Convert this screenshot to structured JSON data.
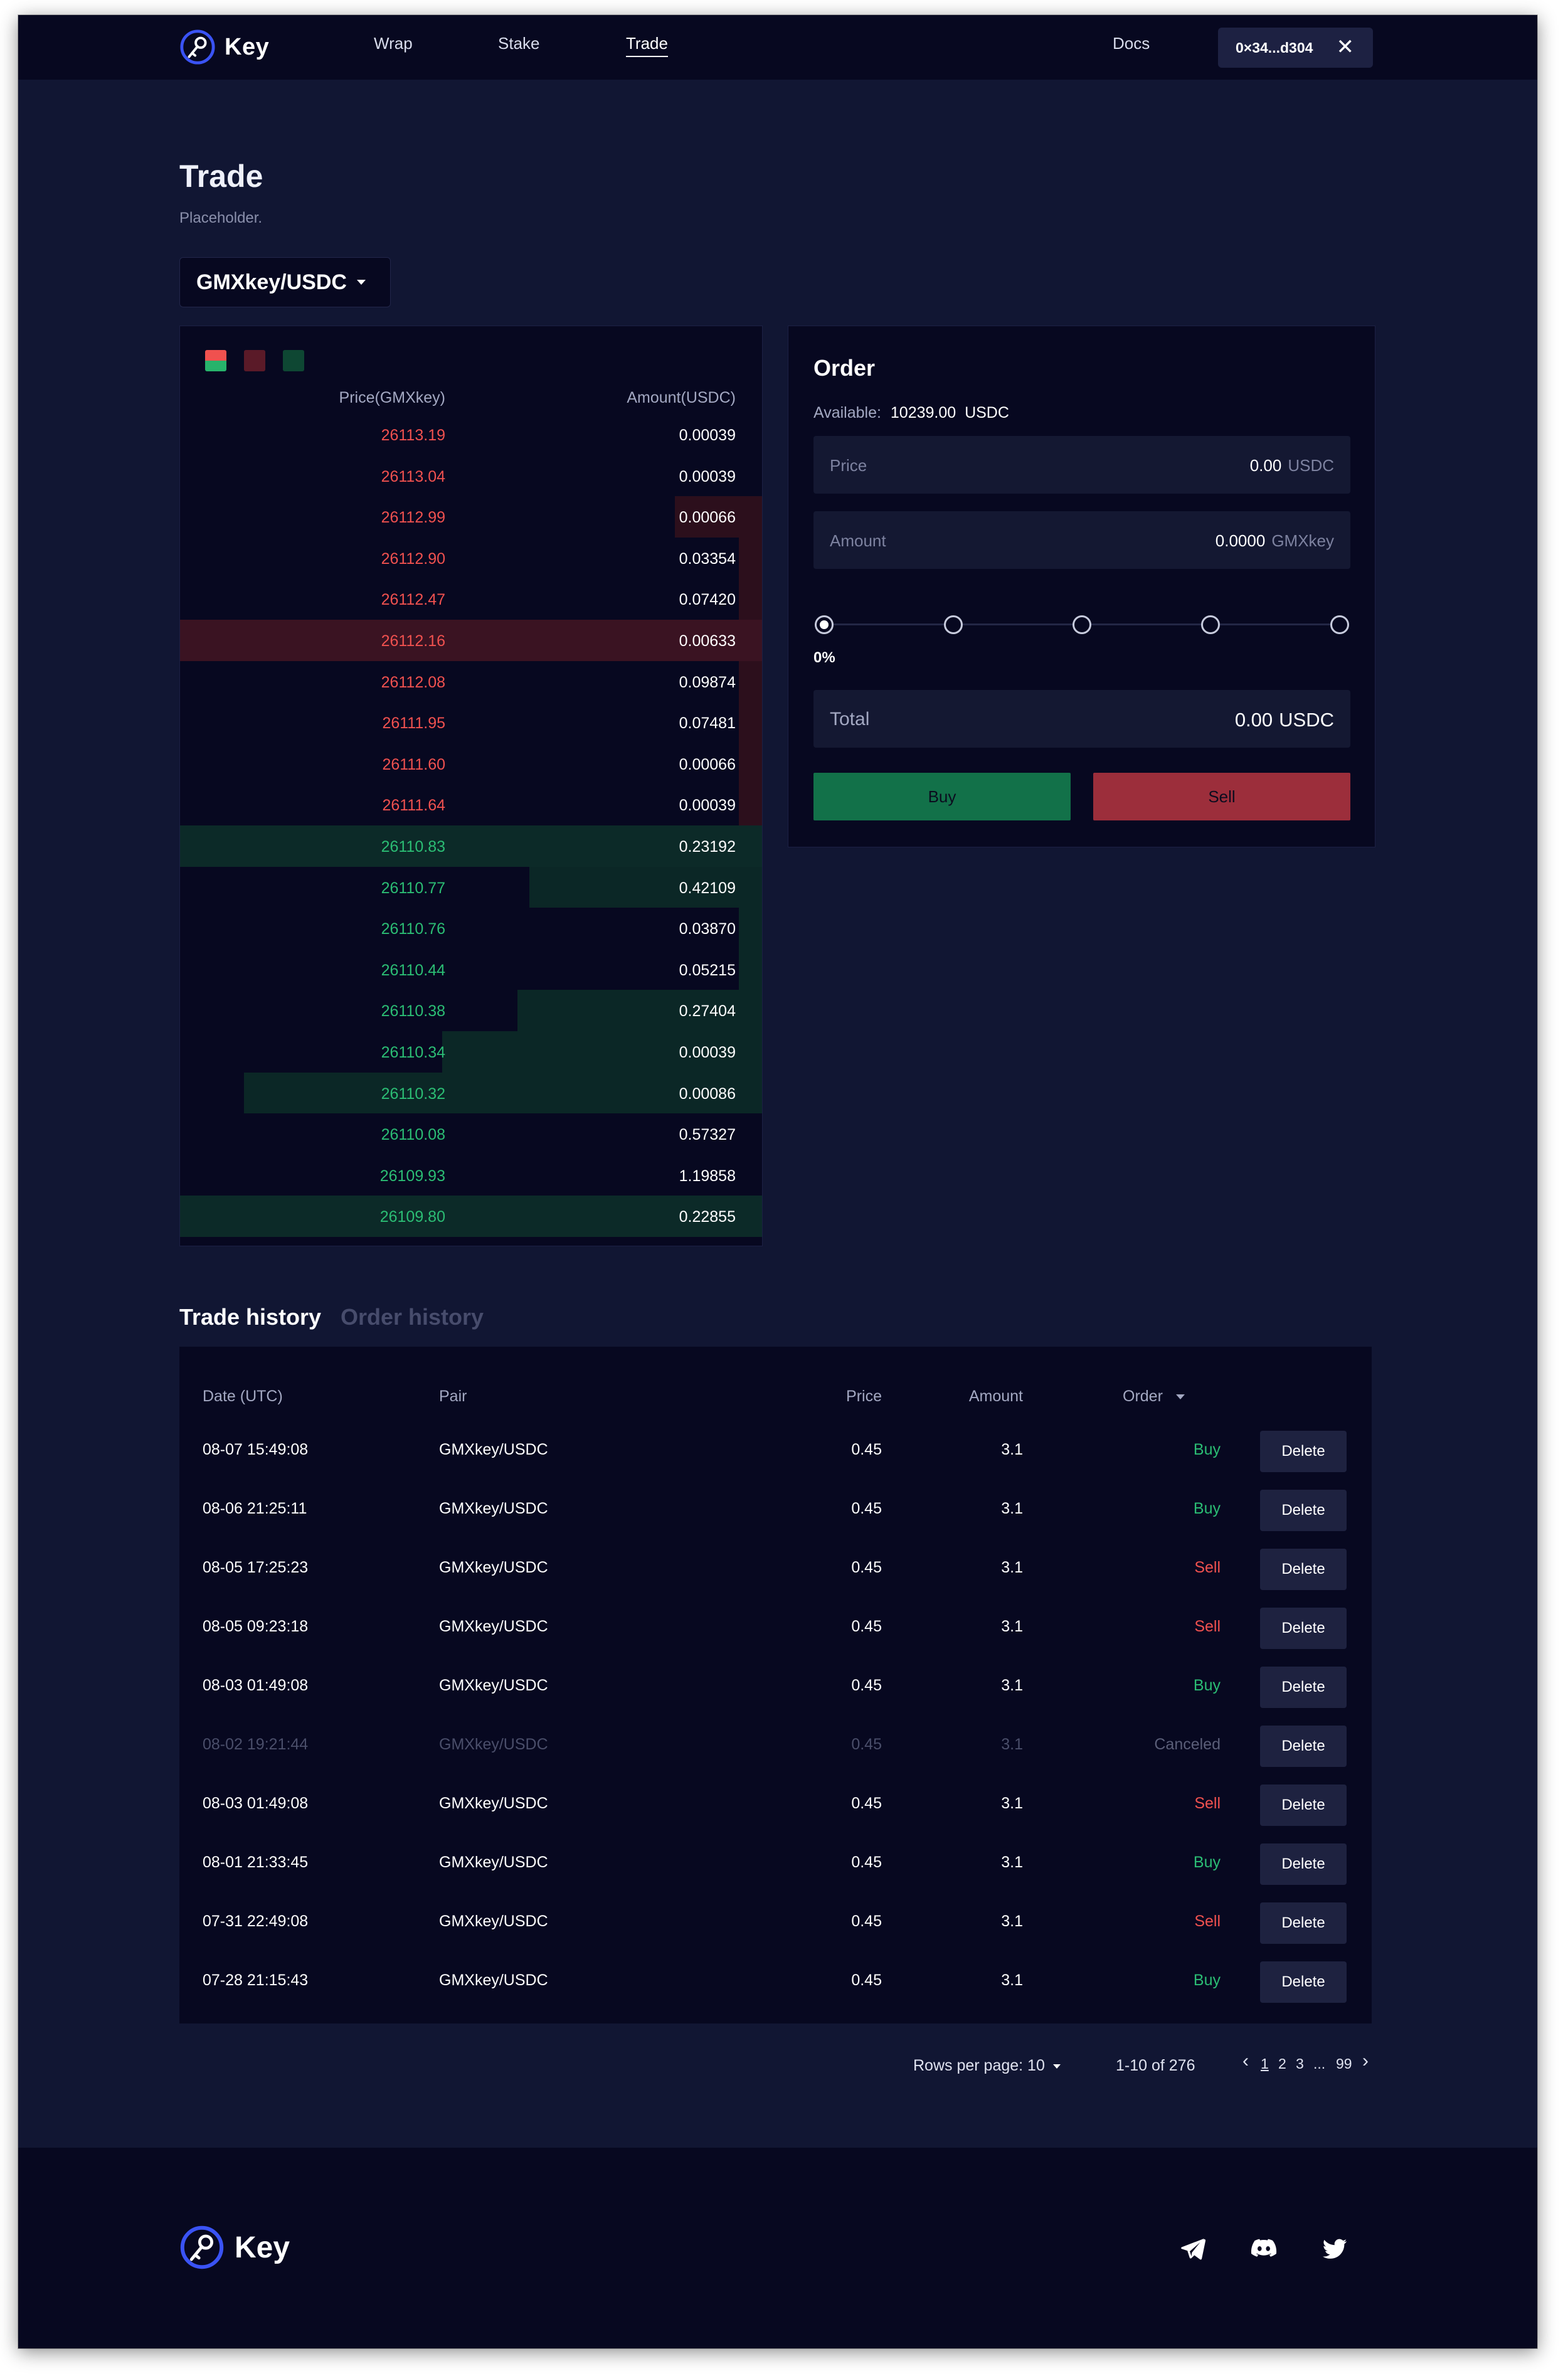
{
  "header": {
    "logo_text": "Key",
    "nav": [
      "Wrap",
      "Stake",
      "Trade"
    ],
    "active_nav": "Trade",
    "docs": "Docs",
    "wallet": "0×34...d304",
    "close_glyph": "✕"
  },
  "page": {
    "title": "Trade",
    "subtitle": "Placeholder.",
    "pair": "GMXkey/USDC"
  },
  "orderbook": {
    "price_header": "Price(GMXkey)",
    "amount_header": "Amount(USDC)",
    "asks": [
      {
        "price": "26113.19",
        "amount": "0.00039",
        "depth": 0
      },
      {
        "price": "26113.04",
        "amount": "0.00039",
        "depth": 0
      },
      {
        "price": "26112.99",
        "amount": "0.00066",
        "depth": 0.15
      },
      {
        "price": "26112.90",
        "amount": "0.03354",
        "depth": 0.04
      },
      {
        "price": "26112.47",
        "amount": "0.07420",
        "depth": 0.04
      },
      {
        "price": "26112.16",
        "amount": "0.00633",
        "depth": 1
      },
      {
        "price": "26112.08",
        "amount": "0.09874",
        "depth": 0.04
      },
      {
        "price": "26111.95",
        "amount": "0.07481",
        "depth": 0.04
      },
      {
        "price": "26111.60",
        "amount": "0.00066",
        "depth": 0.04
      },
      {
        "price": "26111.64",
        "amount": "0.00039",
        "depth": 0.04
      }
    ],
    "bids": [
      {
        "price": "26110.83",
        "amount": "0.23192",
        "depth": 1
      },
      {
        "price": "26110.77",
        "amount": "0.42109",
        "depth": 0.4
      },
      {
        "price": "26110.76",
        "amount": "0.03870",
        "depth": 0.04
      },
      {
        "price": "26110.44",
        "amount": "0.05215",
        "depth": 0.04
      },
      {
        "price": "26110.38",
        "amount": "0.27404",
        "depth": 0.42
      },
      {
        "price": "26110.34",
        "amount": "0.00039",
        "depth": 0.55
      },
      {
        "price": "26110.32",
        "amount": "0.00086",
        "depth": 0.89
      },
      {
        "price": "26110.08",
        "amount": "0.57327",
        "depth": 0
      },
      {
        "price": "26109.93",
        "amount": "1.19858",
        "depth": 0
      },
      {
        "price": "26109.80",
        "amount": "0.22855",
        "depth": 1
      }
    ],
    "colors": {
      "ask": "#f0514f",
      "bid": "#2bbd74"
    }
  },
  "order": {
    "title": "Order",
    "available_label": "Available:",
    "available_value": "10239.00  USDC",
    "price_label": "Price",
    "price_value": "0.00",
    "price_unit": "USDC",
    "amount_label": "Amount",
    "amount_value": "0.0000",
    "amount_unit": "GMXkey",
    "slider_percent": "0%",
    "slider_level": 0,
    "total_label": "Total",
    "total_value": "0.00",
    "total_unit": "USDC",
    "buy_label": "Buy",
    "sell_label": "Sell"
  },
  "history": {
    "tabs": [
      "Trade history",
      "Order history"
    ],
    "active_tab": "Trade history",
    "columns": [
      "Date (UTC)",
      "Pair",
      "Price",
      "Amount",
      "Order"
    ],
    "delete_label": "Delete",
    "rows": [
      {
        "date": "08-07 15:49:08",
        "pair": "GMXkey/USDC",
        "price": "0.45",
        "amount": "3.1",
        "order": "Buy"
      },
      {
        "date": "08-06 21:25:11",
        "pair": "GMXkey/USDC",
        "price": "0.45",
        "amount": "3.1",
        "order": "Buy"
      },
      {
        "date": "08-05 17:25:23",
        "pair": "GMXkey/USDC",
        "price": "0.45",
        "amount": "3.1",
        "order": "Sell"
      },
      {
        "date": "08-05 09:23:18",
        "pair": "GMXkey/USDC",
        "price": "0.45",
        "amount": "3.1",
        "order": "Sell"
      },
      {
        "date": "08-03 01:49:08",
        "pair": "GMXkey/USDC",
        "price": "0.45",
        "amount": "3.1",
        "order": "Buy"
      },
      {
        "date": "08-02 19:21:44",
        "pair": "GMXkey/USDC",
        "price": "0.45",
        "amount": "3.1",
        "order": "Canceled"
      },
      {
        "date": "08-03 01:49:08",
        "pair": "GMXkey/USDC",
        "price": "0.45",
        "amount": "3.1",
        "order": "Sell"
      },
      {
        "date": "08-01 21:33:45",
        "pair": "GMXkey/USDC",
        "price": "0.45",
        "amount": "3.1",
        "order": "Buy"
      },
      {
        "date": "07-31 22:49:08",
        "pair": "GMXkey/USDC",
        "price": "0.45",
        "amount": "3.1",
        "order": "Sell"
      },
      {
        "date": "07-28 21:15:43",
        "pair": "GMXkey/USDC",
        "price": "0.45",
        "amount": "3.1",
        "order": "Buy"
      }
    ]
  },
  "pagination": {
    "rows_per_page": "Rows per page: 10",
    "range": "1-10 of 276",
    "prev": "‹",
    "pages": [
      "1",
      "2",
      "3",
      "...",
      "99"
    ],
    "current": "1",
    "next": "›"
  },
  "footer": {
    "logo_text": "Key",
    "icons": [
      "telegram-icon",
      "discord-icon",
      "twitter-icon"
    ]
  }
}
